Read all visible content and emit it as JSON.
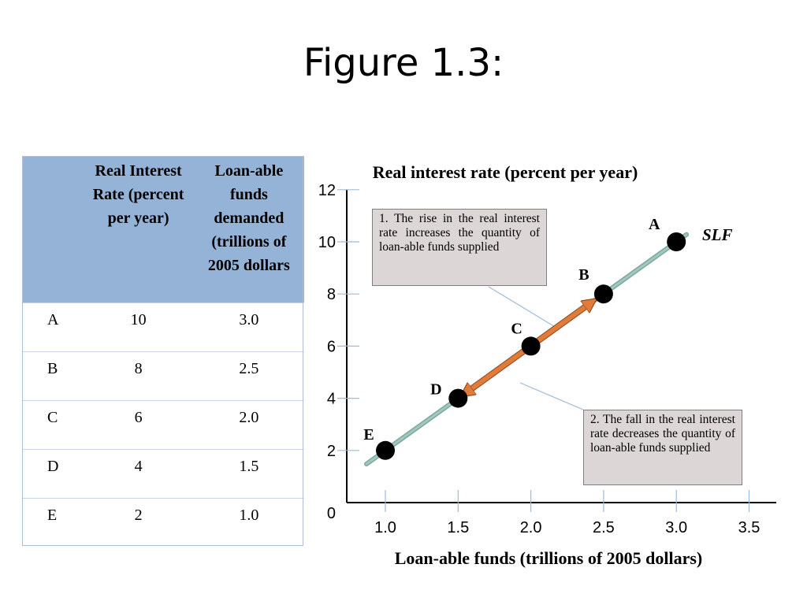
{
  "slide": {
    "title": "Figure 1.3:"
  },
  "table": {
    "headers": [
      "",
      "Real Interest Rate (percent per year)",
      "Loan-able funds demanded (trillions of 2005 dollars"
    ],
    "rows": [
      {
        "label": "A",
        "rate": "10",
        "funds": "3.0"
      },
      {
        "label": "B",
        "rate": "8",
        "funds": "2.5"
      },
      {
        "label": "C",
        "rate": "6",
        "funds": "2.0"
      },
      {
        "label": "D",
        "rate": "4",
        "funds": "1.5"
      },
      {
        "label": "E",
        "rate": "2",
        "funds": "1.0"
      }
    ]
  },
  "notes": {
    "rise": "1. The rise in the real interest rate increases the quantity of loan-able funds supplied",
    "fall": "2. The fall in the real interest rate decreases the quantity of loan-able funds supplied"
  },
  "colors": {
    "table_header": "#95b3d7",
    "curve": "#9fc9c0",
    "arrow": "#e07b39",
    "point": "#000000",
    "note_fill": "#dcd7d6"
  },
  "chart_data": {
    "type": "line",
    "title": "Real interest rate (percent per year)",
    "xlabel": "Loan-able funds (trillions of 2005 dollars)",
    "ylabel": "Real interest rate (percent per year)",
    "xlim": [
      0.7,
      3.6
    ],
    "ylim": [
      0,
      12
    ],
    "x_ticks": [
      "1.0",
      "1.5",
      "2.0",
      "2.5",
      "3.0",
      "3.5"
    ],
    "y_ticks": [
      "0",
      "2",
      "4",
      "6",
      "8",
      "10",
      "12"
    ],
    "grid": false,
    "series": [
      {
        "name": "SLF",
        "x": [
          1.0,
          1.5,
          2.0,
          2.5,
          3.0
        ],
        "y": [
          2,
          4,
          6,
          8,
          10
        ],
        "labels": [
          "E",
          "D",
          "C",
          "B",
          "A"
        ]
      }
    ],
    "annotations": [
      "A",
      "B",
      "C",
      "D",
      "E"
    ],
    "arrow": {
      "from": [
        2.0,
        6
      ],
      "to": [
        1.5,
        4
      ],
      "double_headed": true,
      "extends_to": [
        2.5,
        8
      ]
    }
  }
}
